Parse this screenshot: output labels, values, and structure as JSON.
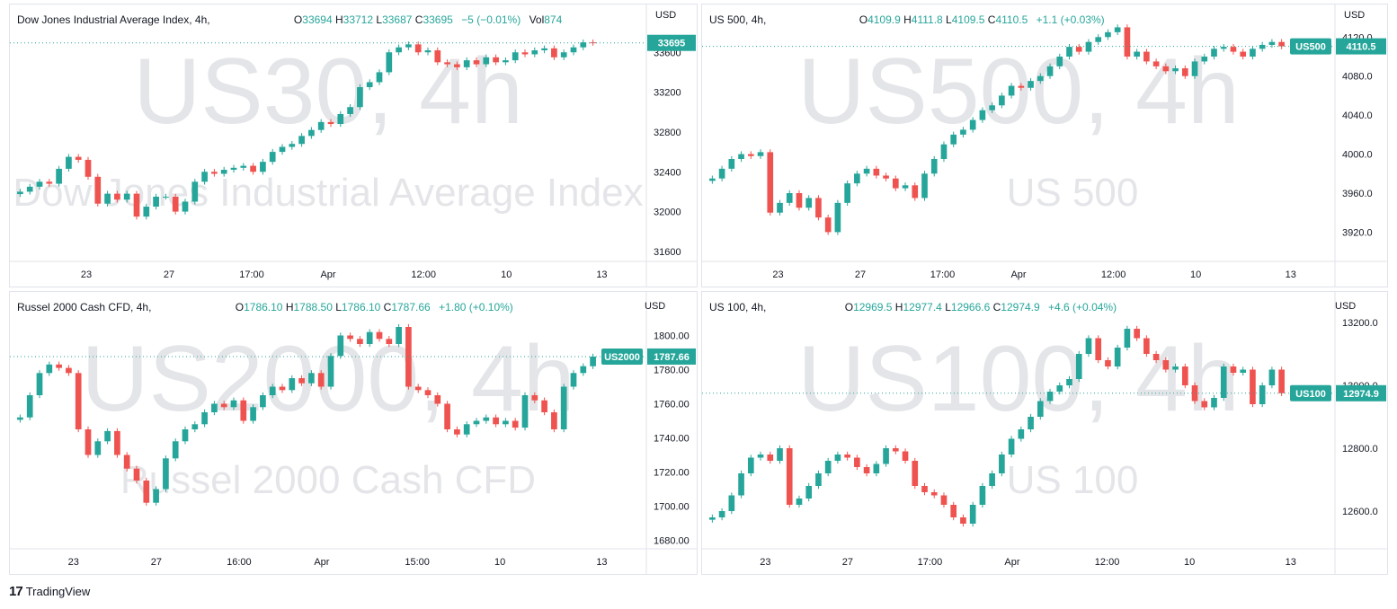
{
  "footer": {
    "logo": "17",
    "brand": "TradingView"
  },
  "chart_data": [
    {
      "type": "candlestick",
      "title": "Dow Jones Industrial Average Index, 4h,",
      "legend": {
        "o": "33694",
        "h": "33712",
        "l": "33687",
        "c": "33695",
        "chg": "−5 (−0.01%)",
        "vol_label": "Vol",
        "vol": "874"
      },
      "currency": "USD",
      "watermark": "US30, 4h",
      "watermark_sub": "Dow Jones Industrial Average Index",
      "price_label": "33695",
      "last_price": 33695,
      "ylim": [
        31500,
        33900
      ],
      "y_ticks": [
        31600,
        32000,
        32400,
        32800,
        33200,
        33600
      ],
      "y_tick_labels": [
        "31600",
        "32000",
        "32400",
        "32800",
        "33200",
        "33600"
      ],
      "x_ticks": [
        {
          "label": "23",
          "pos": 0.12
        },
        {
          "label": "27",
          "pos": 0.25
        },
        {
          "label": "17:00",
          "pos": 0.38
        },
        {
          "label": "Apr",
          "pos": 0.5
        },
        {
          "label": "12:00",
          "pos": 0.65
        },
        {
          "label": "10",
          "pos": 0.78
        },
        {
          "label": "13",
          "pos": 0.93
        }
      ],
      "closes": [
        32200,
        32250,
        32300,
        32280,
        32430,
        32550,
        32520,
        32350,
        32080,
        32180,
        32120,
        32180,
        31950,
        32050,
        32150,
        32150,
        32000,
        32100,
        32300,
        32400,
        32380,
        32420,
        32440,
        32460,
        32400,
        32500,
        32600,
        32650,
        32680,
        32760,
        32820,
        32900,
        32880,
        32980,
        33050,
        33250,
        33300,
        33400,
        33600,
        33650,
        33680,
        33600,
        33620,
        33500,
        33480,
        33450,
        33520,
        33480,
        33550,
        33500,
        33520,
        33600,
        33580,
        33620,
        33640,
        33550,
        33600,
        33650,
        33700,
        33695
      ]
    },
    {
      "type": "candlestick",
      "title": "US 500, 4h,",
      "legend": {
        "o": "4109.9",
        "h": "4111.8",
        "l": "4109.5",
        "c": "4110.5",
        "chg": "+1.1 (+0.03%)"
      },
      "currency": "USD",
      "watermark": "US500, 4h",
      "watermark_sub": "US 500",
      "symbol_tag": "US500",
      "price_label": "4110.5",
      "last_price": 4110.5,
      "ylim": [
        3890,
        4135
      ],
      "y_ticks": [
        3920,
        3960,
        4000,
        4040,
        4080,
        4120
      ],
      "y_tick_labels": [
        "3920.0",
        "3960.0",
        "4000.0",
        "4040.0",
        "4080.0",
        "4120.0"
      ],
      "x_ticks": [
        {
          "label": "23",
          "pos": 0.12
        },
        {
          "label": "27",
          "pos": 0.25
        },
        {
          "label": "17:00",
          "pos": 0.38
        },
        {
          "label": "Apr",
          "pos": 0.5
        },
        {
          "label": "12:00",
          "pos": 0.65
        },
        {
          "label": "10",
          "pos": 0.78
        },
        {
          "label": "13",
          "pos": 0.93
        }
      ],
      "closes": [
        3975,
        3985,
        3995,
        4000,
        3998,
        4002,
        3940,
        3950,
        3960,
        3945,
        3955,
        3935,
        3920,
        3950,
        3970,
        3980,
        3985,
        3978,
        3975,
        3965,
        3968,
        3955,
        3980,
        3995,
        4010,
        4020,
        4025,
        4035,
        4045,
        4050,
        4060,
        4070,
        4068,
        4075,
        4080,
        4090,
        4100,
        4110,
        4105,
        4115,
        4120,
        4125,
        4130,
        4100,
        4105,
        4095,
        4090,
        4085,
        4088,
        4080,
        4095,
        4100,
        4108,
        4110,
        4105,
        4100,
        4108,
        4112,
        4115,
        4110.5
      ]
    },
    {
      "type": "candlestick",
      "title": "Russel 2000 Cash CFD, 4h,",
      "legend": {
        "o": "1786.10",
        "h": "1788.50",
        "l": "1786.10",
        "c": "1787.66",
        "chg": "+1.80 (+0.10%)"
      },
      "currency": "USD",
      "watermark": "US2000, 4h",
      "watermark_sub": "Russel 2000 Cash CFD",
      "symbol_tag": "US2000",
      "price_label": "1787.66",
      "last_price": 1787.66,
      "ylim": [
        1675,
        1815
      ],
      "y_ticks": [
        1680,
        1700,
        1720,
        1740,
        1760,
        1780,
        1800
      ],
      "y_tick_labels": [
        "1680.00",
        "1700.00",
        "1720.00",
        "1740.00",
        "1760.00",
        "1780.00",
        "1800.00"
      ],
      "x_ticks": [
        {
          "label": "23",
          "pos": 0.1
        },
        {
          "label": "27",
          "pos": 0.23
        },
        {
          "label": "16:00",
          "pos": 0.36
        },
        {
          "label": "Apr",
          "pos": 0.49
        },
        {
          "label": "15:00",
          "pos": 0.64
        },
        {
          "label": "10",
          "pos": 0.77
        },
        {
          "label": "13",
          "pos": 0.93
        }
      ],
      "closes": [
        1752,
        1765,
        1778,
        1783,
        1781,
        1778,
        1745,
        1730,
        1738,
        1744,
        1730,
        1722,
        1715,
        1702,
        1710,
        1728,
        1738,
        1745,
        1748,
        1755,
        1760,
        1758,
        1762,
        1750,
        1758,
        1765,
        1770,
        1768,
        1775,
        1772,
        1778,
        1770,
        1788,
        1800,
        1798,
        1795,
        1802,
        1798,
        1795,
        1805,
        1770,
        1768,
        1765,
        1760,
        1745,
        1742,
        1748,
        1750,
        1752,
        1748,
        1750,
        1746,
        1765,
        1762,
        1755,
        1745,
        1770,
        1778,
        1782,
        1787.66
      ]
    },
    {
      "type": "candlestick",
      "title": "US 100, 4h,",
      "legend": {
        "o": "12969.5",
        "h": "12977.4",
        "l": "12966.6",
        "c": "12974.9",
        "chg": "+4.6 (+0.04%)"
      },
      "currency": "USD",
      "watermark": "US100, 4h",
      "watermark_sub": "US 100",
      "symbol_tag": "US100",
      "price_label": "12974.9",
      "last_price": 12974.9,
      "ylim": [
        12480,
        13240
      ],
      "y_ticks": [
        12600,
        12800,
        13000,
        13200
      ],
      "y_tick_labels": [
        "12600.0",
        "12800.0",
        "13000.0",
        "13200.0"
      ],
      "x_ticks": [
        {
          "label": "23",
          "pos": 0.1
        },
        {
          "label": "27",
          "pos": 0.23
        },
        {
          "label": "17:00",
          "pos": 0.36
        },
        {
          "label": "Apr",
          "pos": 0.49
        },
        {
          "label": "12:00",
          "pos": 0.64
        },
        {
          "label": "10",
          "pos": 0.77
        },
        {
          "label": "13",
          "pos": 0.93
        }
      ],
      "closes": [
        12580,
        12600,
        12650,
        12720,
        12770,
        12780,
        12760,
        12800,
        12620,
        12640,
        12680,
        12720,
        12760,
        12780,
        12770,
        12740,
        12720,
        12750,
        12800,
        12790,
        12760,
        12680,
        12660,
        12650,
        12620,
        12580,
        12560,
        12620,
        12680,
        12720,
        12780,
        12830,
        12860,
        12900,
        12950,
        12980,
        13000,
        13020,
        13100,
        13150,
        13080,
        13060,
        13120,
        13180,
        13150,
        13100,
        13080,
        13050,
        13060,
        13000,
        12950,
        12930,
        12960,
        13060,
        13040,
        13050,
        12940,
        13000,
        13050,
        12974.9
      ]
    }
  ]
}
